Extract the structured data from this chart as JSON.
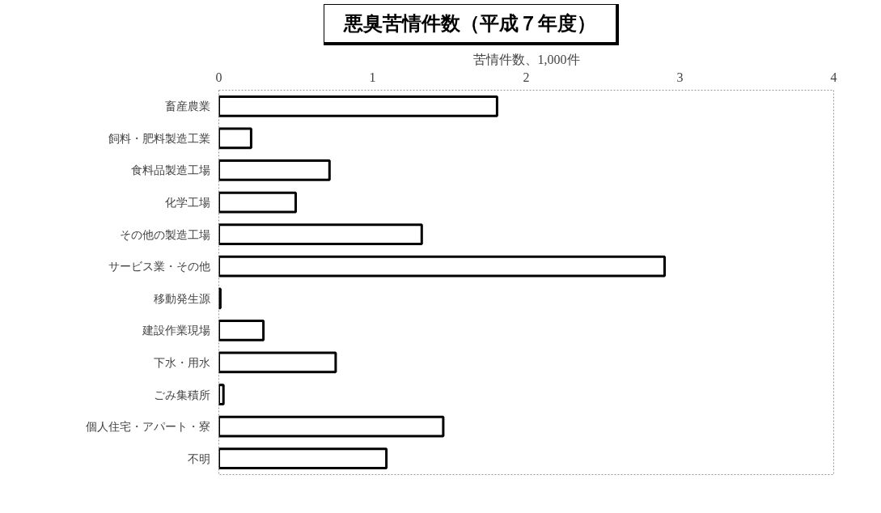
{
  "chart_data": {
    "type": "bar",
    "orientation": "horizontal",
    "title": "悪臭苦情件数（平成７年度）",
    "xlabel": "苦情件数、1,000件",
    "categories": [
      "畜産農業",
      "飼料・肥料製造工業",
      "食料品製造工場",
      "化学工場",
      "その他の製造工場",
      "サービス業・その他",
      "移動発生源",
      "建設作業現場",
      "下水・用水",
      "ごみ集積所",
      "個人住宅・アパート・寮",
      "不明"
    ],
    "values": [
      1.81,
      0.21,
      0.72,
      0.5,
      1.32,
      2.9,
      0.01,
      0.29,
      0.76,
      0.03,
      1.46,
      1.09
    ],
    "color": "#ffffff",
    "xlim": [
      0,
      4
    ],
    "xticks": [
      0,
      1,
      2,
      3,
      4
    ],
    "grid": false
  }
}
